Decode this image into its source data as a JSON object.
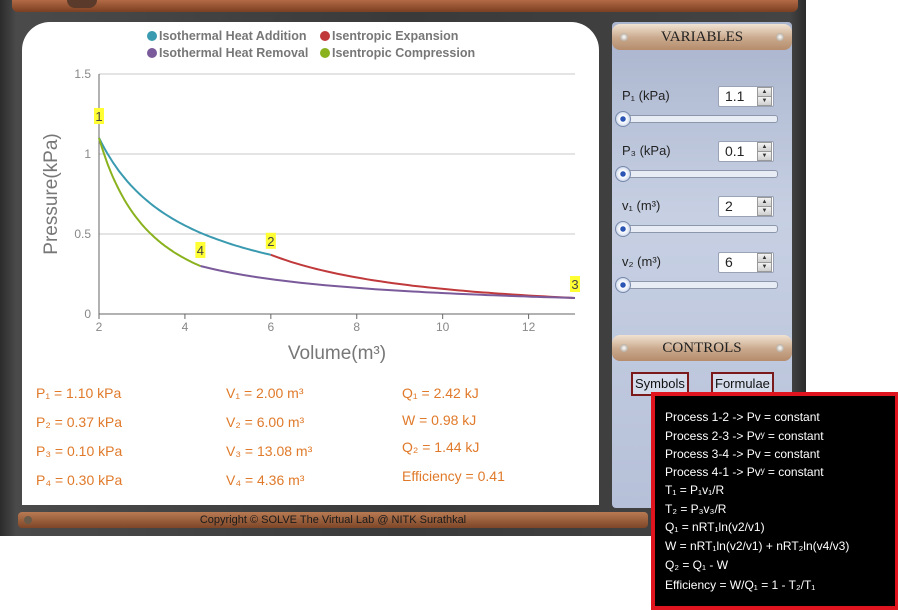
{
  "legend": {
    "heat_add": "Isothermal Heat Addition",
    "heat_rem": "Isothermal Heat Removal",
    "isen_exp": "Isentropic Expansion",
    "isen_comp": "Isentropic Compression"
  },
  "colors": {
    "heat_add": "#3a9ab0",
    "heat_rem": "#7a5a9a",
    "isen_exp": "#c0393b",
    "isen_comp": "#8ab21e",
    "result_text": "#e07a2a"
  },
  "chart_data": {
    "type": "line",
    "xlabel": "Volume(m³)",
    "ylabel": "Pressure(kPa)",
    "xlim": [
      2,
      13.08
    ],
    "ylim": [
      0,
      1.5
    ],
    "xticks": [
      "2",
      "4",
      "6",
      "8",
      "10",
      "12"
    ],
    "yticks": [
      "0",
      "0.5",
      "1",
      "1.5"
    ],
    "grid": "horizontal",
    "legend_position": "top",
    "series": [
      {
        "name": "Isothermal Heat Addition",
        "x": [
          2,
          6
        ],
        "y": [
          1.1,
          0.37
        ]
      },
      {
        "name": "Isentropic Expansion",
        "x": [
          6,
          13.08
        ],
        "y": [
          0.37,
          0.1
        ]
      },
      {
        "name": "Isothermal Heat Removal",
        "x": [
          13.08,
          4.36
        ],
        "y": [
          0.1,
          0.3
        ]
      },
      {
        "name": "Isentropic Compression",
        "x": [
          4.36,
          2
        ],
        "y": [
          0.3,
          1.1
        ]
      }
    ],
    "points": [
      {
        "label": "1",
        "x": 2,
        "y": 1.1
      },
      {
        "label": "2",
        "x": 6,
        "y": 0.37
      },
      {
        "label": "3",
        "x": 13.08,
        "y": 0.1
      },
      {
        "label": "4",
        "x": 4.36,
        "y": 0.3
      }
    ]
  },
  "results": {
    "p1": "P₁ = 1.10 kPa",
    "p2": "P₂ = 0.37 kPa",
    "p3": "P₃ = 0.10 kPa",
    "p4": "P₄ = 0.30 kPa",
    "v1": "V₁ = 2.00 m³",
    "v2": "V₂ = 6.00 m³",
    "v3": "V₃ = 13.08 m³",
    "v4": "V₄ = 4.36 m³",
    "q1": "Q₁ = 2.42 kJ",
    "w": "W = 0.98 kJ",
    "q2": "Q₂ = 1.44 kJ",
    "eff": "Efficiency = 0.41"
  },
  "variables": {
    "title": "VARIABLES",
    "p1": {
      "label": "P₁ (kPa)",
      "value": "1.1"
    },
    "p3": {
      "label": "P₃ (kPa)",
      "value": "0.1"
    },
    "v1": {
      "label": "v₁ (m³)",
      "value": "2"
    },
    "v2": {
      "label": "v₂ (m³)",
      "value": "6"
    }
  },
  "controls": {
    "title": "CONTROLS",
    "symbols": "Symbols",
    "formulae": "Formulae"
  },
  "formulae": [
    "Process 1-2 -> Pv = constant",
    "Process 2-3 -> Pvʸ = constant",
    "Process 3-4 -> Pv = constant",
    "Process 4-1 -> Pvʸ = constant",
    "T₁ = P₁v₁/R",
    "T₂ = P₃v₃/R",
    "Q₁ = nRT₁ln(v2/v1)",
    "W = nRT₁ln(v2/v1) + nRT₂ln(v4/v3)",
    "Q₂ = Q₁ - W",
    "Efficiency = W/Q₁ = 1 - T₂/T₁"
  ],
  "footer": "Copyright © SOLVE The Virtual Lab @ NITK Surathkal"
}
